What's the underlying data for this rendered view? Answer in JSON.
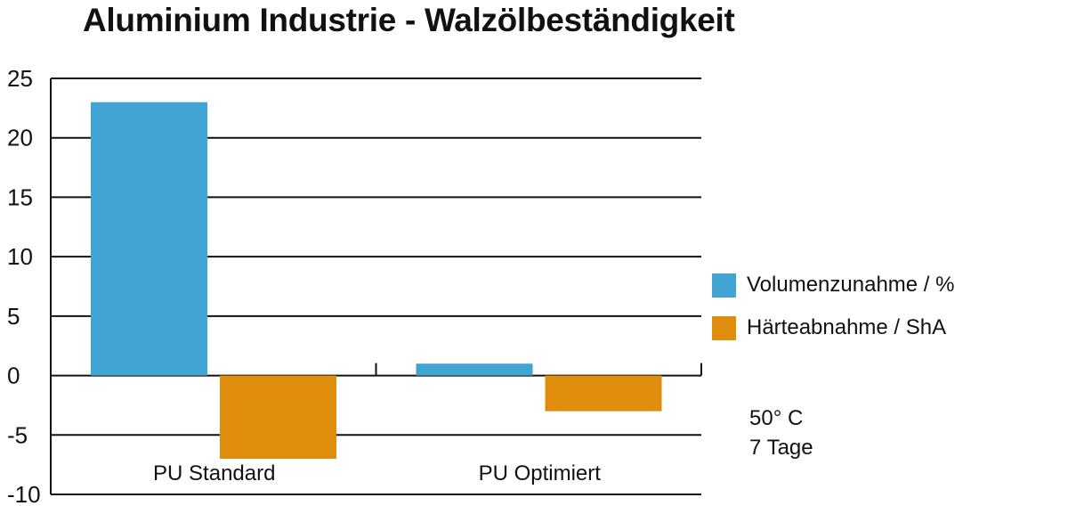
{
  "chart_data": {
    "type": "bar",
    "title": "Aluminium Industrie - Walzölbeständigkeit",
    "categories": [
      "PU Standard",
      "PU Optimiert"
    ],
    "series": [
      {
        "name": "Volumenzunahme / %",
        "color": "#41a4d3",
        "values": [
          23,
          1
        ]
      },
      {
        "name": "Härteabnahme / ShA",
        "color": "#e08c0c",
        "values": [
          -7,
          -3
        ]
      }
    ],
    "ylim": [
      -10,
      25
    ],
    "yticks": [
      25,
      20,
      15,
      10,
      5,
      0,
      -5,
      -10
    ],
    "grid": true,
    "legend_position": "right",
    "xlabel": "",
    "ylabel": ""
  },
  "notes": [
    "50° C",
    "7 Tage"
  ]
}
